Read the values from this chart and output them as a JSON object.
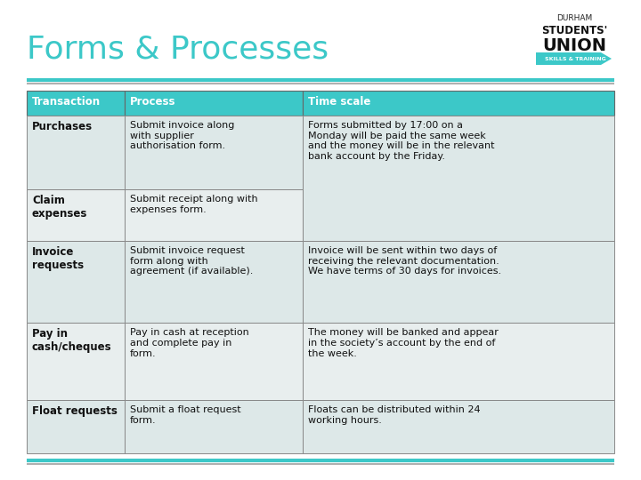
{
  "title": "Forms & Processes",
  "title_color": "#3cc8c8",
  "title_fontsize": 26,
  "background_color": "#ffffff",
  "header_bg_color": "#3cc8c8",
  "header_text_color": "#ffffff",
  "row_bg_color_light": "#dde8e8",
  "row_bg_color_white": "#f0f0f0",
  "border_color": "#888888",
  "accent_teal": "#3cc8c8",
  "accent_gray": "#b0b0b0",
  "col_headers": [
    "Transaction",
    "Process",
    "Time scale"
  ],
  "rows": [
    {
      "transaction": "Purchases",
      "process": "Submit invoice along\nwith supplier\nauthorisation form.",
      "timescale": "Forms submitted by 17:00 on a\nMonday will be paid the same week\nand the money will be in the relevant\nbank account by the Friday.",
      "rowspan": 2
    },
    {
      "transaction": "Claim\nexpenses",
      "process": "Submit receipt along with\nexpenses form.",
      "timescale": "",
      "rowspan": 0
    },
    {
      "transaction": "Invoice\nrequests",
      "process": "Submit invoice request\nform along with\nagreement (if available).",
      "timescale": "Invoice will be sent within two days of\nreceiving the relevant documentation.\nWe have terms of 30 days for invoices.",
      "rowspan": 1
    },
    {
      "transaction": "Pay in\ncash/cheques",
      "process": "Pay in cash at reception\nand complete pay in\nform.",
      "timescale": "The money will be banked and appear\nin the society’s account by the end of\nthe week.",
      "rowspan": 1
    },
    {
      "transaction": "Float requests",
      "process": "Submit a float request\nform.",
      "timescale": "Floats can be distributed within 24\nworking hours.",
      "rowspan": 1
    }
  ],
  "logo_lines": [
    "DURHAM",
    "STUDENTS'",
    "UNION"
  ],
  "logo_banner": "SKILLS & TRAINING"
}
